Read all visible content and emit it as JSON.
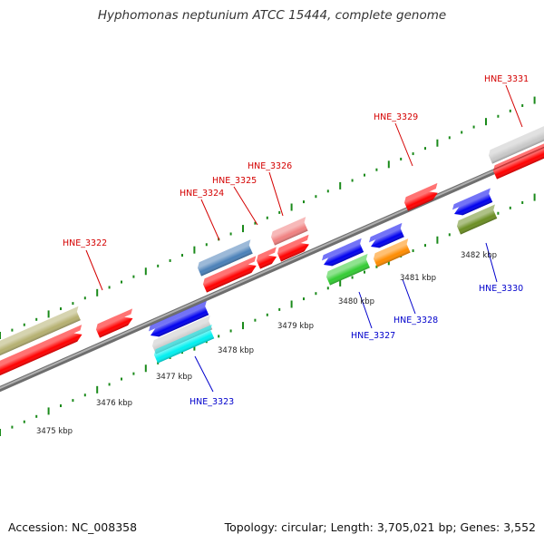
{
  "title": "Hyphomonas neptunium ATCC 15444, complete genome",
  "footer": {
    "accession": "Accession: NC_008358",
    "topology": "Topology: circular; Length: 3,705,021 bp; Genes: 3,552"
  },
  "backbone_color": "#8c8c8c",
  "tick_color": "#1a8a1a",
  "kbp_labels": [
    "3475 kbp",
    "3476 kbp",
    "3477 kbp",
    "3478 kbp",
    "3479 kbp",
    "3480 kbp",
    "3481 kbp",
    "3482 kbp"
  ],
  "genes": [
    {
      "label": "HNE_3322",
      "strand": "forward",
      "color": "#d40000"
    },
    {
      "label": "HNE_3323",
      "strand": "reverse",
      "color": "#0000cc"
    },
    {
      "label": "HNE_3324",
      "strand": "forward",
      "color": "#d40000"
    },
    {
      "label": "HNE_3325",
      "strand": "forward",
      "color": "#d40000"
    },
    {
      "label": "HNE_3326",
      "strand": "forward",
      "color": "#d40000"
    },
    {
      "label": "HNE_3327",
      "strand": "reverse",
      "color": "#0000cc"
    },
    {
      "label": "HNE_3328",
      "strand": "reverse",
      "color": "#0000cc"
    },
    {
      "label": "HNE_3329",
      "strand": "forward",
      "color": "#d40000"
    },
    {
      "label": "HNE_3330",
      "strand": "reverse",
      "color": "#0000cc"
    },
    {
      "label": "HNE_3331",
      "strand": "forward",
      "color": "#d40000"
    }
  ],
  "feature_colors": {
    "cds_forward": "#ff0000",
    "cds_reverse": "#0000ee",
    "khaki": "#b5b070",
    "steelblue": "#4a80b8",
    "pink": "#f08080",
    "green": "#33cc33",
    "orange": "#ff8c00",
    "olive": "#6b8e23",
    "cyan": "#00f0f0",
    "gray": "#c8c8c8"
  }
}
